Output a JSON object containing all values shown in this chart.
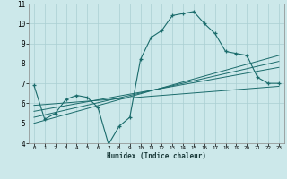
{
  "xlabel": "Humidex (Indice chaleur)",
  "bg_color": "#cce8ea",
  "grid_color": "#aacfd2",
  "line_color": "#1a6b6b",
  "xlim": [
    -0.5,
    23.5
  ],
  "ylim": [
    4,
    11
  ],
  "xticks": [
    0,
    1,
    2,
    3,
    4,
    5,
    6,
    7,
    8,
    9,
    10,
    11,
    12,
    13,
    14,
    15,
    16,
    17,
    18,
    19,
    20,
    21,
    22,
    23
  ],
  "yticks": [
    4,
    5,
    6,
    7,
    8,
    9,
    10,
    11
  ],
  "main_x": [
    0,
    1,
    2,
    3,
    4,
    5,
    6,
    7,
    8,
    9,
    10,
    11,
    12,
    13,
    14,
    15,
    16,
    17,
    18,
    19,
    20,
    21,
    22,
    23
  ],
  "main_y": [
    6.9,
    5.2,
    5.5,
    6.2,
    6.4,
    6.3,
    5.8,
    3.95,
    4.85,
    5.3,
    8.2,
    9.3,
    9.65,
    10.4,
    10.5,
    10.6,
    10.0,
    9.5,
    8.6,
    8.5,
    8.4,
    7.3,
    7.0,
    7.0
  ],
  "line1_x": [
    0,
    23
  ],
  "line1_y": [
    5.0,
    8.4
  ],
  "line2_x": [
    0,
    23
  ],
  "line2_y": [
    5.3,
    8.1
  ],
  "line3_x": [
    0,
    23
  ],
  "line3_y": [
    5.6,
    7.8
  ],
  "line4_x": [
    0,
    23
  ],
  "line4_y": [
    5.9,
    6.85
  ]
}
